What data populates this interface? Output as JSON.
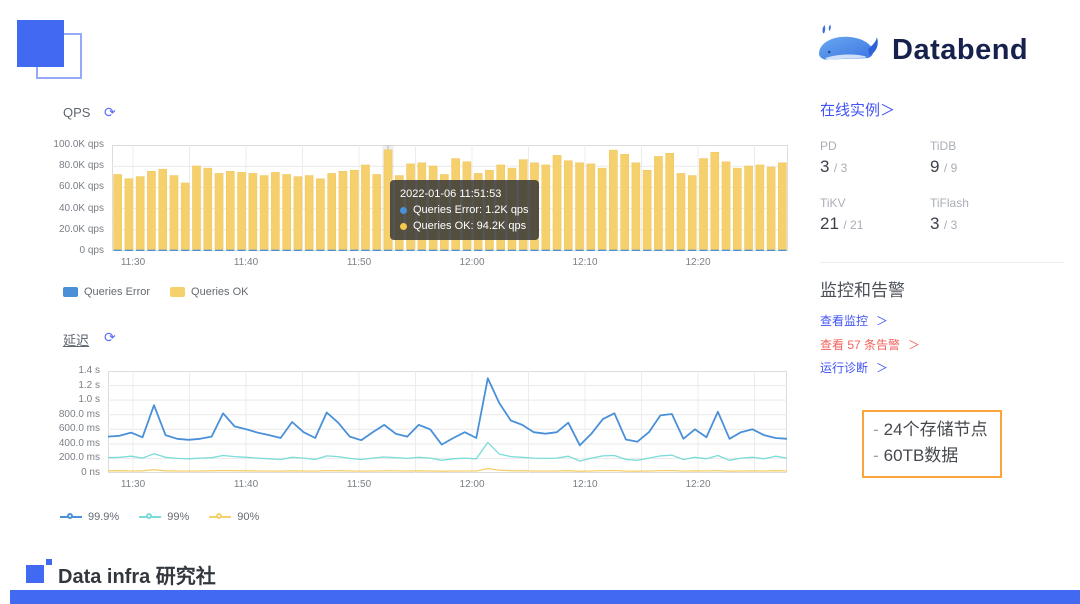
{
  "header": {
    "brand": "Databend"
  },
  "qps_panel": {
    "title": "QPS",
    "refresh_icon": "⟳"
  },
  "latency_panel": {
    "title": "延迟",
    "refresh_icon": "⟳"
  },
  "tooltip": {
    "timestamp": "2022-01-06 11:51:53",
    "rows": [
      {
        "text": "Queries Error: 1.2K qps",
        "color": "#4a90d9"
      },
      {
        "text": "Queries OK: 94.2K qps",
        "color": "#f2c94c"
      }
    ]
  },
  "chart_data": [
    {
      "type": "bar",
      "title": "QPS",
      "stacked": true,
      "x_ticks": [
        "11:30",
        "11:40",
        "11:50",
        "12:00",
        "12:10",
        "12:20"
      ],
      "x_interval_minutes": 1,
      "y_ticks": [
        "100.0K qps",
        "80.0K qps",
        "60.0K qps",
        "40.0K qps",
        "20.0K qps",
        "0 qps"
      ],
      "ylim": [
        0,
        100
      ],
      "unit": "K qps",
      "grid": true,
      "legend_position": "bottom-left",
      "highlight_index": 24,
      "series": [
        {
          "name": "Queries Error",
          "color": "#4a90d9",
          "values": [
            1.2,
            1.2,
            1.2,
            1.2,
            1.2,
            1.2,
            1.2,
            1.2,
            1.2,
            1.2,
            1.2,
            1.2,
            1.2,
            1.2,
            1.2,
            1.2,
            1.2,
            1.2,
            1.2,
            1.2,
            1.2,
            1.2,
            1.2,
            1.2,
            1.2,
            1.2,
            1.2,
            1.2,
            1.2,
            1.2,
            1.2,
            1.2,
            1.2,
            1.2,
            1.2,
            1.2,
            1.2,
            1.2,
            1.2,
            1.2,
            1.2,
            1.2,
            1.2,
            1.2,
            1.2,
            1.2,
            1.2,
            1.2,
            1.2,
            1.2,
            1.2,
            1.2,
            1.2,
            1.2,
            1.2,
            1.2,
            1.2,
            1.2,
            1.2,
            1.2
          ]
        },
        {
          "name": "Queries OK",
          "color": "#f5d06c",
          "values": [
            71,
            67,
            69,
            74,
            76,
            70,
            63,
            79,
            77,
            72,
            74,
            73,
            72,
            70,
            73,
            71,
            69,
            70,
            67,
            72,
            74,
            75,
            80,
            71,
            94.2,
            70,
            81,
            82,
            79,
            71,
            86,
            83,
            72,
            75,
            80,
            77,
            85,
            82,
            80,
            89,
            84,
            82,
            81,
            77,
            94,
            90,
            82,
            75,
            88,
            91,
            72,
            70,
            86,
            92,
            83,
            77,
            79,
            80,
            78,
            82
          ]
        }
      ]
    },
    {
      "type": "line",
      "title": "延迟",
      "x_ticks": [
        "11:30",
        "11:40",
        "11:50",
        "12:00",
        "12:10",
        "12:20"
      ],
      "x_interval_minutes": 1,
      "y_ticks": [
        "1.4 s",
        "1.2 s",
        "1.0 s",
        "800.0 ms",
        "600.0 ms",
        "400.0 ms",
        "200.0 ms",
        "0 ns"
      ],
      "ylim_ms": [
        0,
        1400
      ],
      "unit": "ms",
      "grid": true,
      "legend_position": "bottom-left",
      "series": [
        {
          "name": "99.9%",
          "color": "#4a90d9",
          "values": [
            500,
            510,
            555,
            490,
            930,
            520,
            470,
            455,
            470,
            500,
            820,
            640,
            600,
            555,
            520,
            480,
            700,
            560,
            480,
            830,
            690,
            500,
            450,
            560,
            660,
            540,
            500,
            660,
            600,
            390,
            480,
            560,
            480,
            1300,
            960,
            720,
            660,
            560,
            540,
            560,
            690,
            380,
            540,
            740,
            820,
            460,
            430,
            560,
            790,
            810,
            470,
            600,
            490,
            840,
            470,
            560,
            600,
            520,
            480,
            470
          ]
        },
        {
          "name": "99%",
          "color": "#7adcd8",
          "values": [
            210,
            215,
            230,
            205,
            265,
            215,
            200,
            195,
            205,
            210,
            240,
            225,
            215,
            205,
            195,
            185,
            215,
            205,
            185,
            235,
            225,
            200,
            185,
            205,
            220,
            210,
            200,
            215,
            205,
            175,
            195,
            205,
            195,
            420,
            260,
            225,
            215,
            205,
            200,
            205,
            230,
            165,
            205,
            235,
            240,
            185,
            175,
            205,
            235,
            245,
            185,
            215,
            195,
            240,
            175,
            205,
            215,
            195,
            230,
            205
          ]
        },
        {
          "name": "90%",
          "color": "#f5d06c",
          "values": [
            30,
            32,
            28,
            30,
            45,
            30,
            28,
            27,
            28,
            30,
            35,
            32,
            30,
            28,
            27,
            26,
            30,
            28,
            26,
            33,
            31,
            28,
            26,
            28,
            30,
            29,
            28,
            30,
            28,
            25,
            27,
            28,
            27,
            60,
            40,
            32,
            30,
            28,
            28,
            28,
            31,
            24,
            28,
            33,
            34,
            26,
            25,
            28,
            33,
            34,
            26,
            30,
            27,
            33,
            25,
            28,
            30,
            27,
            31,
            28
          ]
        }
      ]
    }
  ],
  "sidebar": {
    "instances_link": "在线实例",
    "chevron": "＞",
    "instances": [
      {
        "label": "PD",
        "value": "3",
        "suffix": "/ 3"
      },
      {
        "label": "TiDB",
        "value": "9",
        "suffix": "/ 9"
      },
      {
        "label": "TiKV",
        "value": "21",
        "suffix": "/ 21"
      },
      {
        "label": "TiFlash",
        "value": "3",
        "suffix": "/ 3"
      }
    ],
    "alerts_heading": "监控和告警",
    "links": [
      {
        "label": "查看监控",
        "color": "#4254f4"
      },
      {
        "label": "查看 57 条告警",
        "color": "#f2635c"
      },
      {
        "label": "运行诊断",
        "color": "#4254f4"
      }
    ]
  },
  "callout": {
    "lines": [
      {
        "dash": "-",
        "text": "24个存储节点"
      },
      {
        "dash": "-",
        "text": "60TB数据"
      }
    ],
    "border_color": "#f8a63a"
  },
  "footer": {
    "brand": "Data infra 研究社"
  },
  "colors": {
    "accent_blue": "#4254f4",
    "chart_blue": "#4a90d9",
    "chart_yellow": "#f5d06c",
    "chart_cyan": "#7adcd8",
    "alert_red": "#f2635c",
    "callout_orange": "#f8a63a",
    "brand_navy": "#16224d",
    "footer_bar_blue": "#4169f1"
  }
}
